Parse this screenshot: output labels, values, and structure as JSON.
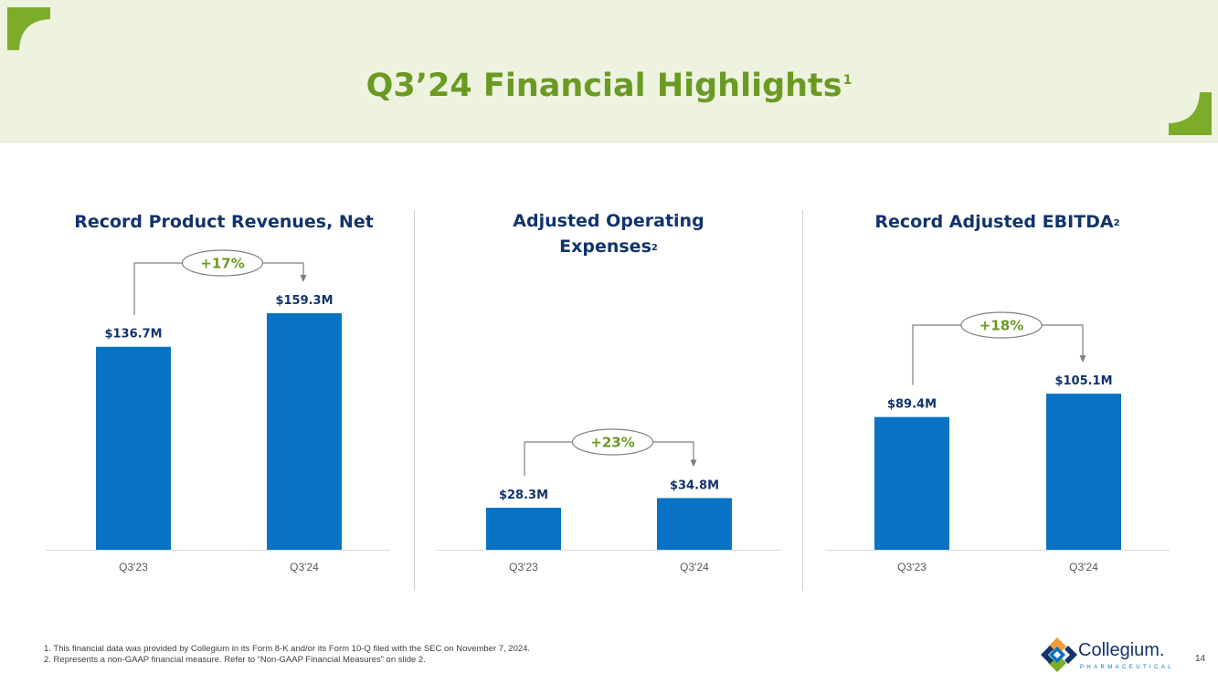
{
  "slide": {
    "title": "Q3’24 Financial Highlights",
    "title_superscript": "1",
    "page_number": "14"
  },
  "brand": {
    "green": "#7cac2a",
    "title_green": "#6b9a23",
    "navy": "#12346b",
    "bar_blue": "#0873c4"
  },
  "chart_data": [
    {
      "type": "bar",
      "title": "Record Product Revenues, Net",
      "title_superscript": "",
      "categories": [
        "Q3'23",
        "Q3'24"
      ],
      "values": [
        136.7,
        159.3
      ],
      "unit": "$M",
      "value_labels": [
        "$136.7M",
        "$159.3M"
      ],
      "change_label": "+17%",
      "xlabel": "",
      "ylabel": "",
      "ylim": [
        0,
        160
      ]
    },
    {
      "type": "bar",
      "title": "Adjusted Operating Expenses",
      "title_superscript": "2",
      "categories": [
        "Q3'23",
        "Q3'24"
      ],
      "values": [
        28.3,
        34.8
      ],
      "unit": "$M",
      "value_labels": [
        "$28.3M",
        "$34.8M"
      ],
      "change_label": "+23%",
      "xlabel": "",
      "ylabel": "",
      "ylim": [
        0,
        160
      ]
    },
    {
      "type": "bar",
      "title": "Record Adjusted EBITDA",
      "title_superscript": "2",
      "categories": [
        "Q3'23",
        "Q3'24"
      ],
      "values": [
        89.4,
        105.1
      ],
      "unit": "$M",
      "value_labels": [
        "$89.4M",
        "$105.1M"
      ],
      "change_label": "+18%",
      "xlabel": "",
      "ylabel": "",
      "ylim": [
        0,
        160
      ]
    }
  ],
  "footnotes": [
    "1. This financial data was provided by Collegium in its Form 8-K and/or its Form 10-Q filed with the SEC on November 7, 2024.",
    "2. Represents a non-GAAP financial measure. Refer to “Non-GAAP Financial Measures” on slide 2."
  ],
  "logo": {
    "name": "Collegium.",
    "subtitle": "PHARMACEUTICAL"
  }
}
